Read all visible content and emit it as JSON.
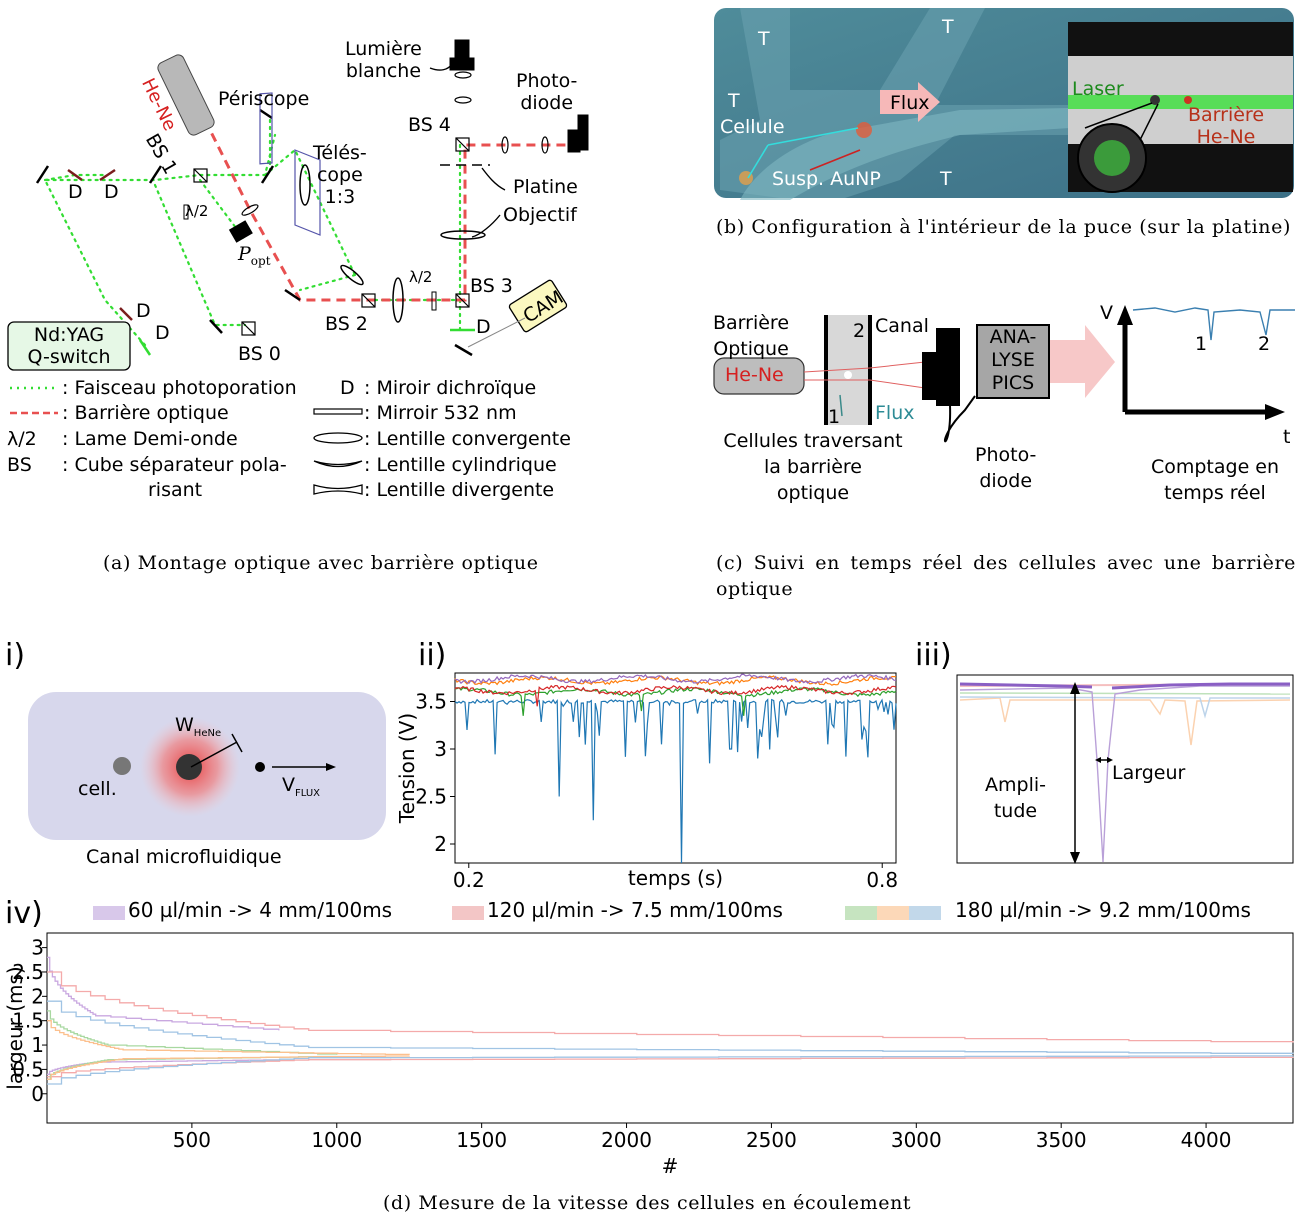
{
  "panel_a": {
    "caption": "(a) Montage optique avec barrière optique",
    "labels": {
      "he_ne": "He-Ne",
      "periscope": "Périscope",
      "telescope": "Télés-\ncope\n1:3",
      "lumiere": "Lumière\nblanche",
      "photodiode": "Photo-\ndiode",
      "bs1": "BS 1",
      "bs2": "BS 2",
      "bs3": "BS 3",
      "bs4": "BS 4",
      "bs0": "BS 0",
      "d": "D",
      "lambda2": "λ/2",
      "popt": "P",
      "popt_sub": "opt",
      "platine": "Platine",
      "objectif": "Objectif",
      "cam": "CAM",
      "ndyag": "Nd:YAG\nQ-switch"
    },
    "legend": [
      {
        "sym": "dots-green",
        "text": ": Faisceau photoporation"
      },
      {
        "sym": "dash-red",
        "text": ": Barrière optique"
      },
      {
        "sym": "λ/2",
        "text": ": Lame Demi-onde"
      },
      {
        "sym": "BS",
        "text": ": Cube séparateur pola-"
      },
      {
        "sym": "",
        "text": "risant"
      },
      {
        "sym": "D",
        "text": ": Miroir dichroïque"
      },
      {
        "sym": "mirror",
        "text": ": Mirroir 532 nm"
      },
      {
        "sym": "conv",
        "text": ": Lentille convergente"
      },
      {
        "sym": "cyl",
        "text": ": Lentille cylindrique"
      },
      {
        "sym": "div",
        "text": ": Lentille divergente"
      }
    ]
  },
  "panel_b": {
    "caption": "(b) Configuration à l'intérieur de la puce (sur la platine)",
    "labels": {
      "t": "T",
      "flux": "Flux",
      "cellule": "Cellule",
      "susp": "Susp. AuNP",
      "laser": "Laser",
      "barriere": "Barrière",
      "hene": "He-Ne"
    }
  },
  "panel_c": {
    "caption": "(c) Suivi en temps réel des cellules avec une barrière optique",
    "labels": {
      "barriere_optique": "Barrière\nOptique",
      "hene": "He-Ne",
      "canal": "Canal",
      "n1": "1",
      "n2": "2",
      "flux": "Flux",
      "analyse": "ANA-\nLYSE\nPICS",
      "cellules": "Cellules traversant\nla barrière\noptique",
      "photodiode": "Photo-\ndiode",
      "v": "V",
      "t": "t",
      "comptage": "Comptage en\ntemps réel"
    }
  },
  "panel_d": {
    "caption": "(d) Mesure de la vitesse des cellules en écoulement",
    "i": {
      "tag": "i)",
      "cell": "cell.",
      "w": "W",
      "w_sub": "HeNe",
      "v": "V",
      "v_sub": "FLUX",
      "canal": "Canal microfluidique"
    },
    "ii": {
      "tag": "ii)"
    },
    "iii": {
      "tag": "iii)",
      "amplitude": "Ampli-\ntude",
      "largeur": "Largeur"
    },
    "iv": {
      "tag": "iv)"
    },
    "legend": [
      {
        "text": "60 µl/min -> 4 mm/100ms",
        "colors": [
          "#d8c8ea"
        ]
      },
      {
        "text": "120 µl/min -> 7.5 mm/100ms",
        "colors": [
          "#f3c6c6"
        ]
      },
      {
        "text": "180 µl/min -> 9.2 mm/100ms",
        "colors": [
          "#c6e4c0",
          "#fcd8b8",
          "#c2d8ea"
        ]
      }
    ]
  },
  "chart_data": [
    {
      "type": "line",
      "xlabel": "temps (s)",
      "ylabel": "Tension (V)",
      "xticks": [
        "0.2",
        "0.8"
      ],
      "yticks": [
        "2",
        "2.5",
        "3",
        "3.5"
      ],
      "xlim": [
        0.18,
        0.82
      ],
      "ylim": [
        1.8,
        3.8
      ],
      "series": [
        {
          "color": "#1f77b4",
          "baseline": 3.5,
          "dips": [
            [
              0.33,
              2.5
            ],
            [
              0.38,
              2.25
            ],
            [
              0.48,
              3.05
            ],
            [
              0.51,
              1.8
            ],
            [
              0.55,
              2.85
            ],
            [
              0.58,
              3.0
            ],
            [
              0.62,
              2.9
            ],
            [
              0.66,
              3.0
            ],
            [
              0.72,
              3.05
            ],
            [
              0.77,
              3.1
            ]
          ]
        },
        {
          "color": "#2ca02c",
          "baseline": 3.6,
          "dips": [
            [
              0.28,
              3.35
            ],
            [
              0.45,
              3.4
            ],
            [
              0.6,
              3.35
            ]
          ]
        },
        {
          "color": "#d62728",
          "baseline": 3.62,
          "dips": [
            [
              0.3,
              3.45
            ]
          ]
        },
        {
          "color": "#ff7f0e",
          "baseline": 3.72,
          "dips": []
        },
        {
          "color": "#9467bd",
          "baseline": 3.74,
          "dips": []
        }
      ]
    },
    {
      "type": "line",
      "xlabel": "#",
      "ylabel": "largeur (ms)",
      "xticks": [
        "500",
        "1000",
        "1500",
        "2000",
        "2500",
        "3000",
        "3500",
        "4000"
      ],
      "yticks": [
        "0",
        "0.5",
        "1",
        "1.5",
        "2",
        "2.5",
        "3"
      ],
      "xlim": [
        0,
        4300
      ],
      "ylim": [
        -0.6,
        3.3
      ],
      "series": [
        {
          "name": "60 µl/min -> 4 mm/100ms",
          "color": "#c9a8e0",
          "lower": [
            0.4,
            0.65,
            0.7
          ],
          "upper": [
            2.8,
            1.6,
            1.3
          ],
          "n": 800
        },
        {
          "name": "120 µl/min -> 7.5 mm/100ms",
          "color": "#f4aaaa",
          "lower": [
            0.35,
            0.7,
            0.75
          ],
          "upper": [
            2.5,
            1.3,
            1.05
          ],
          "n": 4300
        },
        {
          "name": "180 µl/min -> 9.2 mm/100ms",
          "color": "#a8d8a0",
          "lower": [
            0.3,
            0.7,
            0.77
          ],
          "upper": [
            1.7,
            1.0,
            0.8
          ],
          "n": 1000
        },
        {
          "name": "180 µl/min -> 9.2 mm/100ms",
          "color": "#fcc08e",
          "lower": [
            0.3,
            0.72,
            0.78
          ],
          "upper": [
            1.5,
            0.9,
            0.8
          ],
          "n": 1250
        },
        {
          "name": "180 µl/min -> 9.2 mm/100ms",
          "color": "#a0c4e4",
          "lower": [
            0.2,
            0.74,
            0.78
          ],
          "upper": [
            1.9,
            0.95,
            0.82
          ],
          "n": 4300
        }
      ]
    }
  ]
}
